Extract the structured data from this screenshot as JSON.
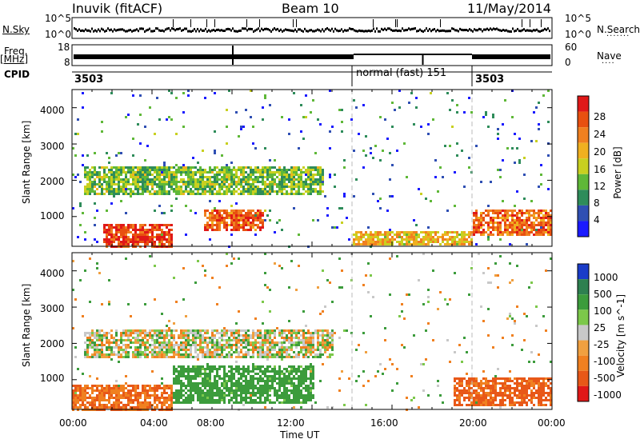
{
  "header": {
    "station": "Inuvik (fitACF)",
    "beam": "Beam 10",
    "date": "11/May/2014"
  },
  "top_panels": {
    "nsky_label": "N.Sky",
    "nsearch_label": "N.Search",
    "nsky_ticks": [
      "10^5",
      "10^0"
    ],
    "nsearch_ticks": [
      "10^5",
      "10^0"
    ],
    "freq_label": "Freq.",
    "freq_unit": "[MHz]",
    "freq_ticks": [
      "18",
      "8"
    ],
    "nave_label": "Nave",
    "nave_ticks": [
      "60",
      "0"
    ],
    "cpid_label": "CPID",
    "cpid_segments": [
      {
        "label": "3503",
        "start_hour": 0,
        "end_hour": 14.0
      },
      {
        "label": "normal (fast) 151",
        "start_hour": 14.0,
        "end_hour": 20.0
      },
      {
        "label": "3503",
        "start_hour": 20.0,
        "end_hour": 24.0
      }
    ]
  },
  "chart_data": [
    {
      "type": "heatmap",
      "title": "",
      "xlabel": "Time UT",
      "ylabel": "Slant Range [km]",
      "x_ticks": [
        "00:00",
        "04:00",
        "08:00",
        "12:00",
        "16:00",
        "20:00",
        "00:00"
      ],
      "y_ticks": [
        "1000",
        "2000",
        "3000",
        "4000"
      ],
      "xlim_hours": [
        0,
        24
      ],
      "ylim_km": [
        180,
        4500
      ],
      "colorbar": {
        "label": "Power [dB]",
        "tick_labels": [
          "4",
          "8",
          "12",
          "16",
          "20",
          "24",
          "28"
        ],
        "colors": [
          "#1a1aff",
          "#2f4fb3",
          "#2e8c5a",
          "#5fb838",
          "#c8d020",
          "#f0b020",
          "#f08020",
          "#e85010",
          "#e01818"
        ]
      },
      "features": [
        {
          "name": "near-range band",
          "t_start": 6.5,
          "t_end": 9.5,
          "range_km": [
            600,
            1200
          ],
          "power_db": 26
        },
        {
          "name": "early near-range",
          "t_start": 1.5,
          "t_end": 5.0,
          "range_km": [
            200,
            800
          ],
          "power_db": 28
        },
        {
          "name": "late near-range",
          "t_start": 20.0,
          "t_end": 24.0,
          "range_km": [
            500,
            1200
          ],
          "power_db": 25
        },
        {
          "name": "mid-range band",
          "t_start": 0.5,
          "t_end": 12.5,
          "range_km": [
            1600,
            2400
          ],
          "power_db": 14
        },
        {
          "name": "afternoon low range",
          "t_start": 14.0,
          "t_end": 20.0,
          "range_km": [
            250,
            600
          ],
          "power_db": 20
        }
      ]
    },
    {
      "type": "heatmap",
      "title": "",
      "xlabel": "Time UT",
      "ylabel": "Slant Range [km]",
      "x_ticks": [
        "00:00",
        "04:00",
        "08:00",
        "12:00",
        "16:00",
        "20:00",
        "00:00"
      ],
      "y_ticks": [
        "1000",
        "2000",
        "3000",
        "4000"
      ],
      "xlim_hours": [
        0,
        24
      ],
      "ylim_km": [
        180,
        4500
      ],
      "colorbar": {
        "label": "Velocity [m s^-1]",
        "tick_labels": [
          "1000",
          "500",
          "100",
          "25",
          "-25",
          "-100",
          "-500",
          "-1000"
        ],
        "colors": [
          "#1a3cc8",
          "#2e8050",
          "#3c9c3c",
          "#7cc84a",
          "#c8c8c8",
          "#f0a040",
          "#f08020",
          "#e85818",
          "#e01818"
        ]
      },
      "features": [
        {
          "name": "ground scatter band",
          "t_start": 0.5,
          "t_end": 13.0,
          "range_km": [
            1600,
            2400
          ],
          "velocity": 0
        },
        {
          "name": "negative near-range",
          "t_start": 0.0,
          "t_end": 5.0,
          "range_km": [
            200,
            900
          ],
          "velocity": -300
        },
        {
          "name": "positive mid",
          "t_start": 5.0,
          "t_end": 12.0,
          "range_km": [
            400,
            1400
          ],
          "velocity": 150
        },
        {
          "name": "late negative",
          "t_start": 19.0,
          "t_end": 24.0,
          "range_km": [
            300,
            1100
          ],
          "velocity": -350
        }
      ]
    }
  ]
}
